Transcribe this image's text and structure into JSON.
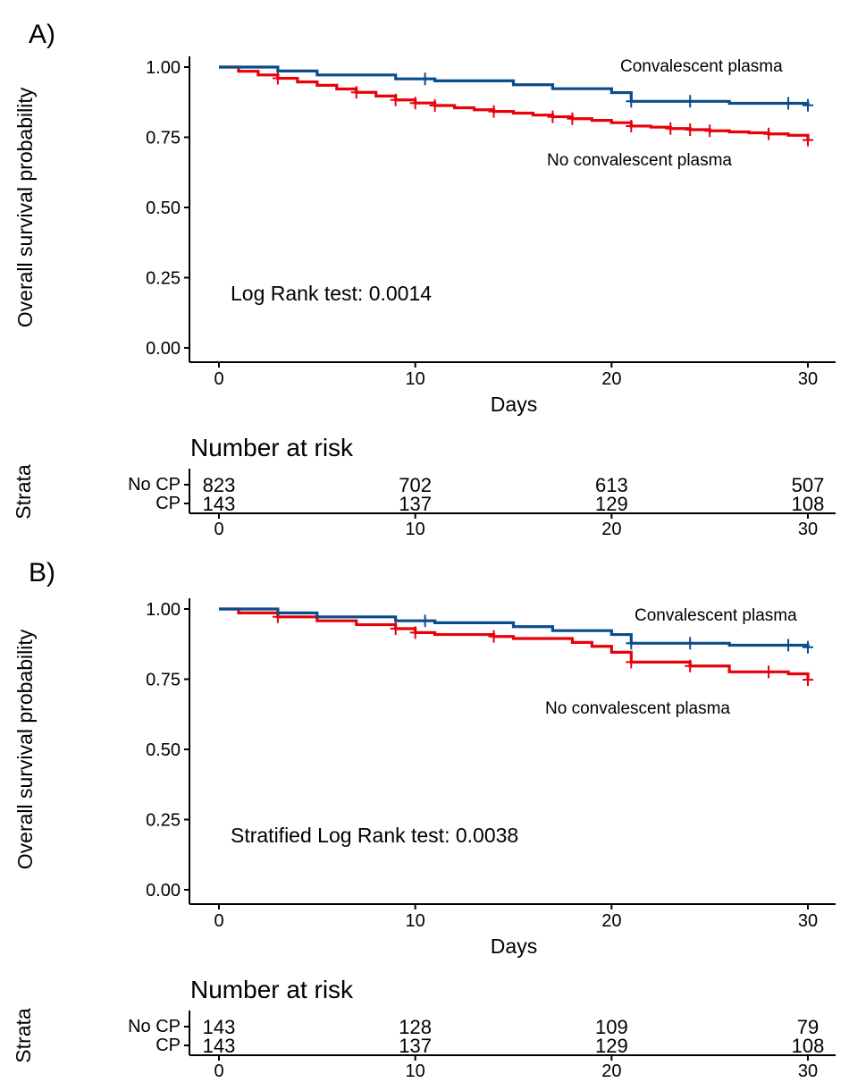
{
  "chart_data": [
    {
      "type": "line",
      "panel_label": "A)",
      "xlabel": "Days",
      "ylabel": "Overall survival probability",
      "xlim": [
        0,
        30
      ],
      "ylim": [
        0,
        1
      ],
      "x_ticks": [
        0,
        10,
        20,
        30
      ],
      "y_ticks": [
        "0.00",
        "0.25",
        "0.50",
        "0.75",
        "1.00"
      ],
      "colors": {
        "cp": "#0a4d8c",
        "no_cp": "#e8000b"
      },
      "series": [
        {
          "name": "Convalescent plasma",
          "color": "#0a4d8c",
          "steps": [
            [
              0,
              1.0
            ],
            [
              3,
              0.986
            ],
            [
              5,
              0.972
            ],
            [
              9,
              0.958
            ],
            [
              11,
              0.951
            ],
            [
              15,
              0.937
            ],
            [
              17,
              0.923
            ],
            [
              20,
              0.909
            ],
            [
              21,
              0.878
            ],
            [
              26,
              0.871
            ],
            [
              30,
              0.864
            ]
          ],
          "censored": [
            [
              10.5,
              0.958
            ],
            [
              21,
              0.878
            ],
            [
              24,
              0.878
            ],
            [
              29,
              0.871
            ],
            [
              30,
              0.864
            ]
          ]
        },
        {
          "name": "No convalescent plasma",
          "color": "#e8000b",
          "steps": [
            [
              0,
              1.0
            ],
            [
              1,
              0.985
            ],
            [
              2,
              0.972
            ],
            [
              3,
              0.96
            ],
            [
              4,
              0.947
            ],
            [
              5,
              0.935
            ],
            [
              6,
              0.922
            ],
            [
              7,
              0.91
            ],
            [
              8,
              0.897
            ],
            [
              9,
              0.883
            ],
            [
              10,
              0.872
            ],
            [
              11,
              0.863
            ],
            [
              12,
              0.855
            ],
            [
              13,
              0.848
            ],
            [
              14,
              0.842
            ],
            [
              15,
              0.836
            ],
            [
              16,
              0.829
            ],
            [
              17,
              0.823
            ],
            [
              18,
              0.816
            ],
            [
              19,
              0.81
            ],
            [
              20,
              0.802
            ],
            [
              21,
              0.79
            ],
            [
              22,
              0.786
            ],
            [
              23,
              0.781
            ],
            [
              24,
              0.777
            ],
            [
              25,
              0.773
            ],
            [
              26,
              0.769
            ],
            [
              27,
              0.766
            ],
            [
              28,
              0.762
            ],
            [
              29,
              0.757
            ],
            [
              30,
              0.74
            ]
          ],
          "censored": [
            [
              3,
              0.96
            ],
            [
              7,
              0.91
            ],
            [
              9,
              0.883
            ],
            [
              10,
              0.872
            ],
            [
              11,
              0.863
            ],
            [
              14,
              0.842
            ],
            [
              17,
              0.823
            ],
            [
              18,
              0.816
            ],
            [
              21,
              0.79
            ],
            [
              23,
              0.781
            ],
            [
              24,
              0.777
            ],
            [
              25,
              0.773
            ],
            [
              28,
              0.762
            ],
            [
              30,
              0.74
            ]
          ]
        }
      ],
      "annotations": {
        "cp_label": "Convalescent plasma",
        "no_cp_label": "No convalescent plasma",
        "test": "Log Rank test:  0.0014"
      },
      "risk_table": {
        "title": "Number at risk",
        "ylabel": "Strata",
        "rows": [
          {
            "label": "No CP",
            "values": [
              "823",
              "702",
              "613",
              "507"
            ]
          },
          {
            "label": "CP",
            "values": [
              "143",
              "137",
              "129",
              "108"
            ]
          }
        ]
      }
    },
    {
      "type": "line",
      "panel_label": "B)",
      "xlabel": "Days",
      "ylabel": "Overall survival probability",
      "xlim": [
        0,
        30
      ],
      "ylim": [
        0,
        1
      ],
      "x_ticks": [
        0,
        10,
        20,
        30
      ],
      "y_ticks": [
        "0.00",
        "0.25",
        "0.50",
        "0.75",
        "1.00"
      ],
      "colors": {
        "cp": "#0a4d8c",
        "no_cp": "#e8000b"
      },
      "series": [
        {
          "name": "Convalescent plasma",
          "color": "#0a4d8c",
          "steps": [
            [
              0,
              1.0
            ],
            [
              3,
              0.986
            ],
            [
              5,
              0.972
            ],
            [
              9,
              0.958
            ],
            [
              11,
              0.951
            ],
            [
              15,
              0.937
            ],
            [
              17,
              0.923
            ],
            [
              20,
              0.909
            ],
            [
              21,
              0.878
            ],
            [
              26,
              0.871
            ],
            [
              30,
              0.864
            ]
          ],
          "censored": [
            [
              10.5,
              0.958
            ],
            [
              21,
              0.878
            ],
            [
              24,
              0.878
            ],
            [
              29,
              0.871
            ],
            [
              30,
              0.864
            ]
          ]
        },
        {
          "name": "No convalescent plasma",
          "color": "#e8000b",
          "steps": [
            [
              0,
              1.0
            ],
            [
              1,
              0.986
            ],
            [
              3,
              0.972
            ],
            [
              5,
              0.958
            ],
            [
              7,
              0.944
            ],
            [
              9,
              0.93
            ],
            [
              10,
              0.916
            ],
            [
              11,
              0.909
            ],
            [
              14,
              0.902
            ],
            [
              15,
              0.895
            ],
            [
              18,
              0.881
            ],
            [
              19,
              0.867
            ],
            [
              20,
              0.846
            ],
            [
              21,
              0.811
            ],
            [
              24,
              0.797
            ],
            [
              26,
              0.776
            ],
            [
              29,
              0.769
            ],
            [
              30,
              0.748
            ]
          ],
          "censored": [
            [
              3,
              0.972
            ],
            [
              9,
              0.93
            ],
            [
              10,
              0.916
            ],
            [
              14,
              0.902
            ],
            [
              21,
              0.811
            ],
            [
              24,
              0.797
            ],
            [
              28,
              0.776
            ],
            [
              30,
              0.748
            ]
          ]
        }
      ],
      "annotations": {
        "cp_label": "Convalescent plasma",
        "no_cp_label": "No convalescent plasma",
        "test": "Stratified Log Rank test:  0.0038"
      },
      "risk_table": {
        "title": "Number at risk",
        "ylabel": "Strata",
        "rows": [
          {
            "label": "No CP",
            "values": [
              "143",
              "128",
              "109",
              "79"
            ]
          },
          {
            "label": "CP",
            "values": [
              "143",
              "137",
              "129",
              "108"
            ]
          }
        ]
      }
    }
  ]
}
